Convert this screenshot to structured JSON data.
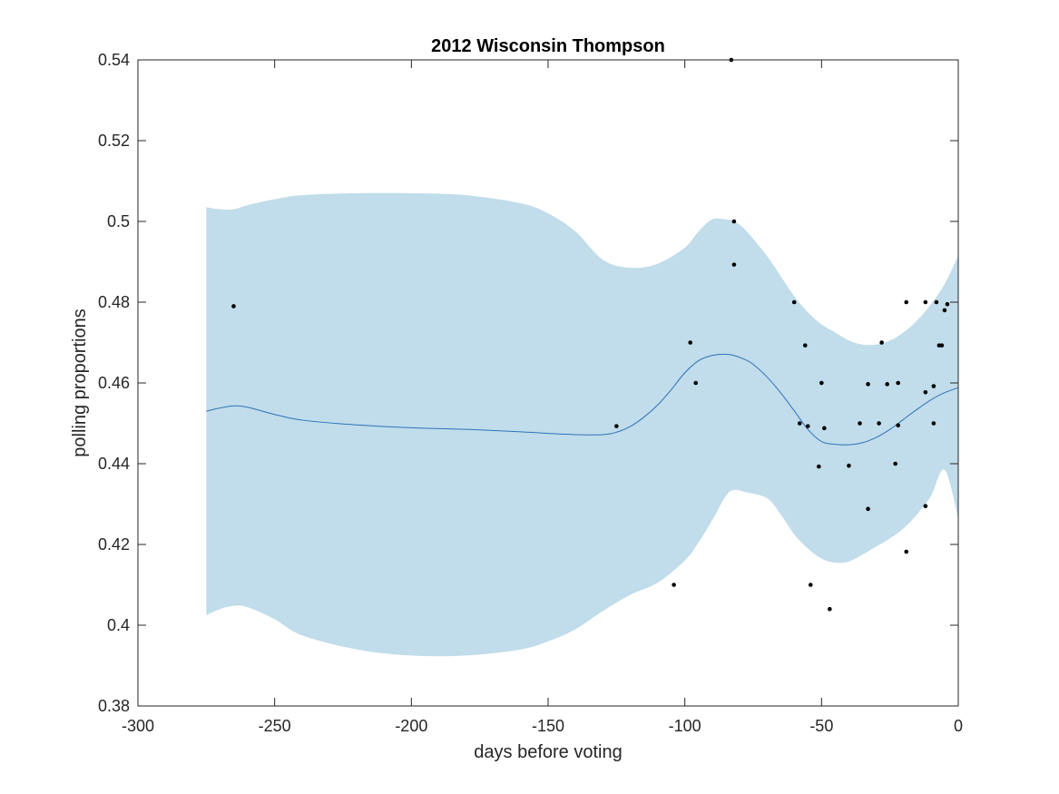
{
  "chart_data": {
    "type": "line",
    "title": "2012 Wisconsin Thompson",
    "xlabel": "days before voting",
    "ylabel": "polling proportions",
    "xlim": [
      -300,
      0
    ],
    "ylim": [
      0.38,
      0.54
    ],
    "xticks": [
      -300,
      -250,
      -200,
      -150,
      -100,
      -50,
      0
    ],
    "yticks": [
      0.38,
      0.4,
      0.42,
      0.44,
      0.46,
      0.48,
      0.5,
      0.52,
      0.54
    ],
    "xtick_labels": [
      "-300",
      "-250",
      "-200",
      "-150",
      "-100",
      "-50",
      "0"
    ],
    "ytick_labels": [
      "0.38",
      "0.4",
      "0.42",
      "0.44",
      "0.46",
      "0.48",
      "0.5",
      "0.52",
      "0.54"
    ],
    "grid": false,
    "colors": {
      "band": "#c1dcea",
      "line": "#2d73b8",
      "points": "#000000",
      "axes": "#262626"
    },
    "series": [
      {
        "type": "band",
        "x": [
          -275,
          -270,
          -265,
          -260,
          -250,
          -240,
          -220,
          -200,
          -180,
          -160,
          -150,
          -140,
          -130,
          -120,
          -110,
          -100,
          -95,
          -90,
          -85,
          -82,
          -78,
          -70,
          -65,
          -60,
          -55,
          -50,
          -45,
          -40,
          -35,
          -30,
          -25,
          -20,
          -15,
          -10,
          -5,
          0
        ],
        "upper": [
          0.5035,
          0.503,
          0.503,
          0.504,
          0.5055,
          0.5065,
          0.507,
          0.507,
          0.5065,
          0.5045,
          0.502,
          0.4975,
          0.4905,
          0.4885,
          0.4895,
          0.4935,
          0.4975,
          0.5005,
          0.5005,
          0.5,
          0.498,
          0.4915,
          0.4865,
          0.4815,
          0.4775,
          0.4745,
          0.4725,
          0.4705,
          0.4695,
          0.4695,
          0.4705,
          0.4725,
          0.4755,
          0.4795,
          0.4845,
          0.4915
        ],
        "lower": [
          0.4025,
          0.404,
          0.4048,
          0.4045,
          0.4015,
          0.3975,
          0.394,
          0.3925,
          0.3925,
          0.394,
          0.396,
          0.399,
          0.4035,
          0.4075,
          0.4105,
          0.416,
          0.4205,
          0.426,
          0.432,
          0.4335,
          0.433,
          0.4315,
          0.4275,
          0.4225,
          0.419,
          0.4165,
          0.4155,
          0.4158,
          0.4175,
          0.4195,
          0.4215,
          0.424,
          0.4275,
          0.432,
          0.4385,
          0.4265
        ]
      },
      {
        "type": "line",
        "x": [
          -275,
          -270,
          -265,
          -260,
          -250,
          -240,
          -220,
          -200,
          -180,
          -160,
          -150,
          -140,
          -130,
          -125,
          -120,
          -115,
          -110,
          -105,
          -100,
          -95,
          -90,
          -85,
          -82,
          -78,
          -75,
          -70,
          -65,
          -60,
          -55,
          -50,
          -45,
          -40,
          -35,
          -30,
          -25,
          -20,
          -15,
          -10,
          -5,
          0
        ],
        "y": [
          0.453,
          0.4538,
          0.4543,
          0.454,
          0.4522,
          0.4508,
          0.4496,
          0.4489,
          0.4485,
          0.4479,
          0.4475,
          0.4472,
          0.4472,
          0.4478,
          0.4492,
          0.4515,
          0.4545,
          0.4583,
          0.4625,
          0.4655,
          0.4668,
          0.4671,
          0.4668,
          0.4658,
          0.4646,
          0.4615,
          0.4576,
          0.4531,
          0.4485,
          0.4455,
          0.4448,
          0.4447,
          0.4452,
          0.4465,
          0.4485,
          0.451,
          0.4535,
          0.4558,
          0.4576,
          0.4588
        ]
      },
      {
        "type": "scatter",
        "points": [
          [
            -265,
            0.479
          ],
          [
            -125,
            0.4493
          ],
          [
            -104,
            0.41
          ],
          [
            -98,
            0.47
          ],
          [
            -96,
            0.46
          ],
          [
            -83,
            0.54
          ],
          [
            -82,
            0.5
          ],
          [
            -82,
            0.4893
          ],
          [
            -60,
            0.48
          ],
          [
            -58,
            0.45
          ],
          [
            -56,
            0.4693
          ],
          [
            -55,
            0.4493
          ],
          [
            -54,
            0.41
          ],
          [
            -51,
            0.4393
          ],
          [
            -50,
            0.46
          ],
          [
            -49,
            0.4488
          ],
          [
            -47,
            0.404
          ],
          [
            -40,
            0.4395
          ],
          [
            -36,
            0.45
          ],
          [
            -33,
            0.4597
          ],
          [
            -33,
            0.4288
          ],
          [
            -29,
            0.45
          ],
          [
            -28,
            0.47
          ],
          [
            -26,
            0.4597
          ],
          [
            -23,
            0.44
          ],
          [
            -22,
            0.46
          ],
          [
            -22,
            0.4495
          ],
          [
            -19,
            0.48
          ],
          [
            -19,
            0.4182
          ],
          [
            -12,
            0.48
          ],
          [
            -12,
            0.4577
          ],
          [
            -12,
            0.4295
          ],
          [
            -9,
            0.4592
          ],
          [
            -9,
            0.45
          ],
          [
            -8,
            0.48
          ],
          [
            -7,
            0.4693
          ],
          [
            -6,
            0.4693
          ],
          [
            -5,
            0.478
          ],
          [
            -4,
            0.4795
          ]
        ]
      }
    ]
  }
}
